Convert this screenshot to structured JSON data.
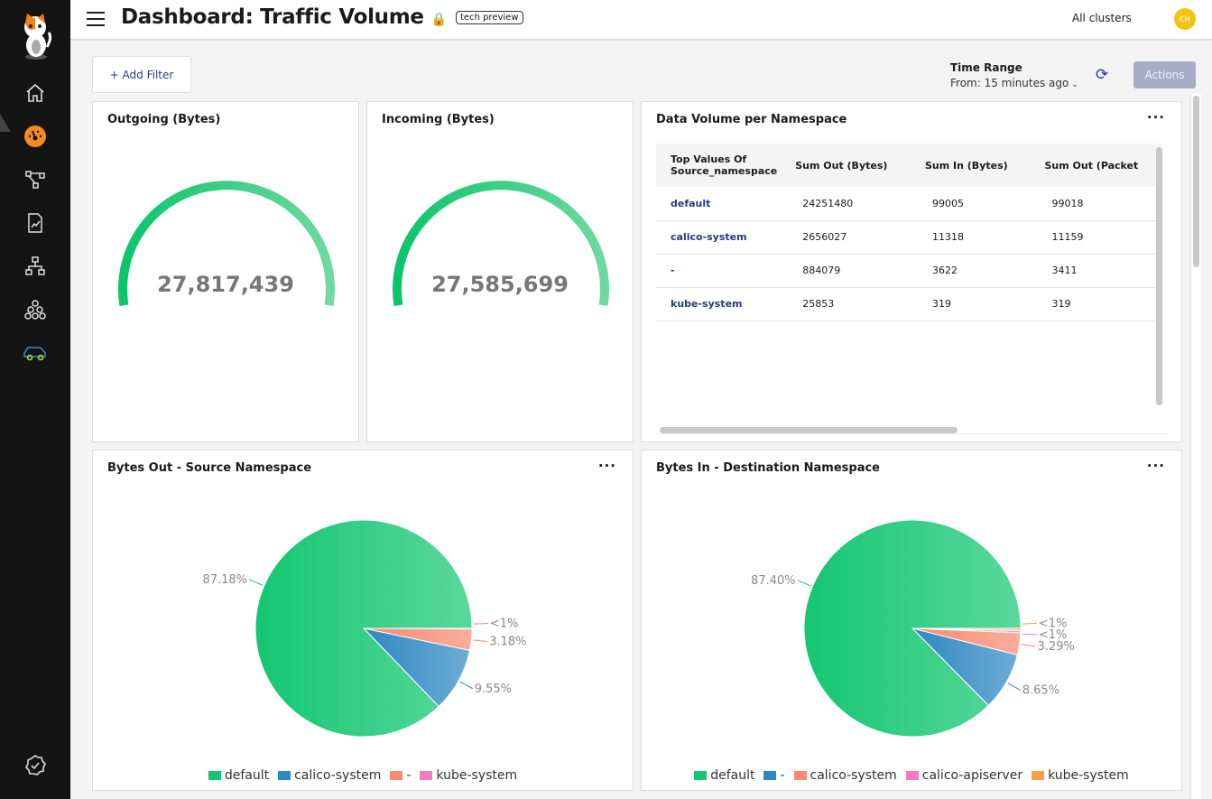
{
  "header": {
    "title": "Dashboard: Traffic Volume",
    "badge": "tech preview",
    "cluster": "All clusters",
    "avatar": "CH"
  },
  "toolbar": {
    "add_filter": "+ Add Filter",
    "time_range_label": "Time Range",
    "time_range_value": "From: 15 minutes ago",
    "actions": "Actions"
  },
  "sidebar": {
    "items": [
      "home-icon",
      "dashboard-icon",
      "service-graph-icon",
      "policies-icon",
      "network-icon",
      "components-icon",
      "vehicle-icon"
    ],
    "bottom": "check-badge-icon"
  },
  "outgoing": {
    "title": "Outgoing (Bytes)",
    "value": "27,817,439",
    "fill": 1
  },
  "incoming": {
    "title": "Incoming (Bytes)",
    "value": "27,585,699",
    "fill": 1
  },
  "table": {
    "title": "Data Volume per Namespace",
    "headers": [
      "Top Values Of Source_namespace",
      "Sum Out (Bytes)",
      "Sum In (Bytes)",
      "Sum Out (Packet"
    ],
    "rows": [
      [
        "default",
        "24251480",
        "99005",
        "99018"
      ],
      [
        "calico-system",
        "2656027",
        "11318",
        "11159"
      ],
      [
        "-",
        "884079",
        "3622",
        "3411"
      ],
      [
        "kube-system",
        "25853",
        "319",
        "319"
      ]
    ]
  },
  "chart_data": [
    {
      "type": "pie",
      "title": "Bytes Out - Source Namespace",
      "legend": "bottom",
      "slices": [
        {
          "name": "kube-system",
          "value": 0.09,
          "label": "<1%",
          "color": "#f57ac0"
        },
        {
          "name": "-",
          "value": 3.18,
          "label": "3.18%",
          "color": "#f98a72"
        },
        {
          "name": "calico-system",
          "value": 9.55,
          "label": "9.55%",
          "color": "#2f88c2"
        },
        {
          "name": "default",
          "value": 87.18,
          "label": "87.18%",
          "color": "#14c672"
        }
      ],
      "legend_order": [
        "default",
        "calico-system",
        "-",
        "kube-system"
      ]
    },
    {
      "type": "pie",
      "title": "Bytes In - Destination Namespace",
      "legend": "bottom",
      "slices": [
        {
          "name": "kube-system",
          "value": 0.33,
          "label": "<1%",
          "color": "#f9a04a"
        },
        {
          "name": "calico-apiserver",
          "value": 0.33,
          "label": "<1%",
          "color": "#f57ac0"
        },
        {
          "name": "calico-system",
          "value": 3.29,
          "label": "3.29%",
          "color": "#f98a72"
        },
        {
          "name": "-",
          "value": 8.65,
          "label": "8.65%",
          "color": "#2f88c2"
        },
        {
          "name": "default",
          "value": 87.4,
          "label": "87.40%",
          "color": "#14c672"
        }
      ],
      "legend_order": [
        "default",
        "-",
        "calico-system",
        "calico-apiserver",
        "kube-system"
      ]
    }
  ]
}
